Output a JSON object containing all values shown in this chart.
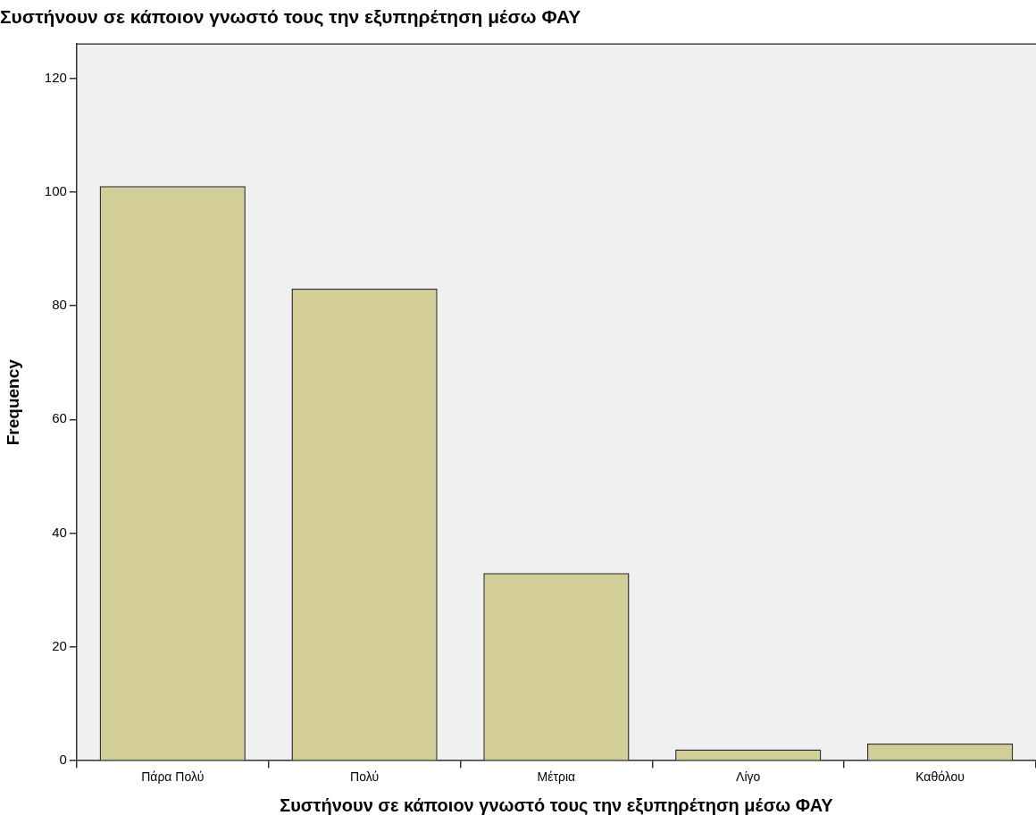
{
  "chart_data": {
    "type": "bar",
    "title": "Συστήνουν σε κάποιον γνωστό τους την εξυπηρέτηση μέσω ΦΑΥ",
    "xlabel": "Συστήνουν σε κάποιον γνωστό τους την εξυπηρέτηση μέσω ΦΑΥ",
    "ylabel": "Frequency",
    "categories": [
      "Πάρα Πολύ",
      "Πολύ",
      "Μέτρια",
      "Λίγο",
      "Καθόλου"
    ],
    "values": [
      101,
      83,
      33,
      2,
      3
    ],
    "color": "#d3ce97",
    "ylim": [
      0,
      126
    ],
    "yticks": [
      0,
      20,
      40,
      60,
      80,
      100,
      120
    ],
    "grid": false,
    "legend": false
  }
}
